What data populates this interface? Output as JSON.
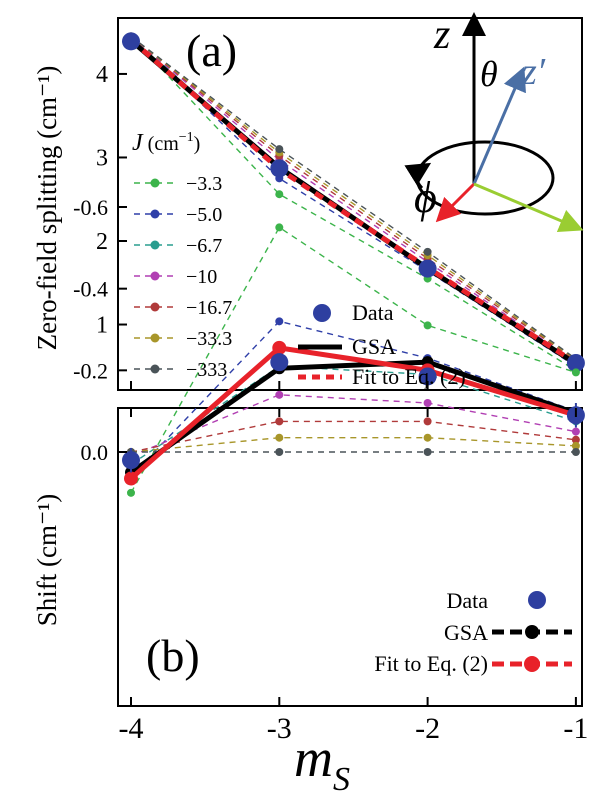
{
  "chart_data": [
    {
      "panel_label": "(a)",
      "type": "line",
      "ylabel": "Zero-field splitting (cm⁻¹)",
      "xlim": [
        -4,
        -1
      ],
      "ylim": [
        0.3,
        4.55
      ],
      "y_ticks": [
        "1",
        "2",
        "3",
        "4"
      ],
      "x": [
        -4,
        -3,
        -2,
        -1
      ],
      "legend_title": "J (cm⁻¹)",
      "series": [
        {
          "name": "−3.3",
          "color": "#3cb44b",
          "values": [
            4.45,
            2.56,
            1.55,
            0.45
          ]
        },
        {
          "name": "−5.0",
          "color": "#2f3fa8",
          "values": [
            4.45,
            2.75,
            1.64,
            0.5
          ]
        },
        {
          "name": "−6.7",
          "color": "#2a9d8f",
          "values": [
            4.45,
            2.88,
            1.7,
            0.52
          ]
        },
        {
          "name": "−10",
          "color": "#b13fb3",
          "values": [
            4.45,
            2.97,
            1.75,
            0.55
          ]
        },
        {
          "name": "−16.7",
          "color": "#b03a3a",
          "values": [
            4.45,
            3.02,
            1.79,
            0.57
          ]
        },
        {
          "name": "−33.3",
          "color": "#a8962a",
          "values": [
            4.45,
            3.06,
            1.83,
            0.58
          ]
        },
        {
          "name": "−333",
          "color": "#4a5358",
          "values": [
            4.45,
            3.1,
            1.87,
            0.59
          ]
        },
        {
          "name": "Data",
          "color": "#2e3fa0",
          "values": [
            4.39,
            2.87,
            1.67,
            0.54
          ]
        },
        {
          "name": "GSA",
          "color": "#000000",
          "values": [
            4.4,
            2.88,
            1.67,
            0.53
          ]
        },
        {
          "name": "Fit to Eq. (2)",
          "color": "#e8222a",
          "values": [
            4.41,
            2.86,
            1.68,
            0.54
          ]
        }
      ],
      "inset_labels": {
        "z": "z",
        "theta": "θ",
        "zprime": "z′",
        "phi": "ϕ"
      }
    },
    {
      "panel_label": "(b)",
      "type": "line",
      "ylabel": "Shift (cm⁻¹)",
      "xlabel": "m_S",
      "xlim": [
        -4.1,
        -0.95
      ],
      "ylim": [
        -0.6,
        0.12
      ],
      "x_ticks": [
        "-4",
        "-3",
        "-2",
        "-1"
      ],
      "y_ticks": [
        "0.0",
        "-0.2",
        "-0.4",
        "-0.6"
      ],
      "x": [
        -4,
        -3,
        -2,
        -1
      ],
      "series": [
        {
          "name": "−3.3",
          "color": "#3cb44b",
          "values": [
            0.1,
            -0.55,
            -0.31,
            -0.195
          ]
        },
        {
          "name": "−5.0",
          "color": "#2f3fa8",
          "values": [
            0.06,
            -0.32,
            -0.23,
            -0.1
          ]
        },
        {
          "name": "−6.7",
          "color": "#2a9d8f",
          "values": [
            0.03,
            -0.21,
            -0.19,
            -0.075
          ]
        },
        {
          "name": "−10",
          "color": "#b13fb3",
          "values": [
            0.01,
            -0.14,
            -0.12,
            -0.05
          ]
        },
        {
          "name": "−16.7",
          "color": "#b03a3a",
          "values": [
            0.0,
            -0.075,
            -0.075,
            -0.03
          ]
        },
        {
          "name": "−33.3",
          "color": "#a8962a",
          "values": [
            0.0,
            -0.035,
            -0.035,
            -0.015
          ]
        },
        {
          "name": "−333",
          "color": "#4a5358",
          "values": [
            0.0,
            0.0,
            0.0,
            0.0
          ]
        },
        {
          "name": "Data",
          "color": "#2e3fa0",
          "values": [
            0.02,
            -0.22,
            -0.185,
            -0.09
          ],
          "errors": [
            0.03,
            0.02,
            0.02,
            0.03
          ]
        },
        {
          "name": "GSA",
          "color": "#000000",
          "values": [
            0.05,
            -0.205,
            -0.22,
            -0.095
          ]
        },
        {
          "name": "Fit to Eq. (2)",
          "color": "#e8222a",
          "values": [
            0.065,
            -0.255,
            -0.2,
            -0.09
          ]
        }
      ]
    }
  ]
}
